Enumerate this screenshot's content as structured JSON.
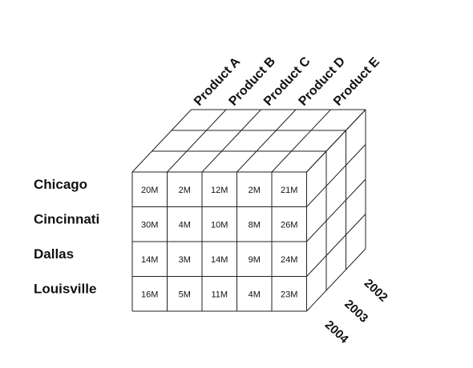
{
  "cities": [
    "Chicago",
    "Cincinnati",
    "Dallas",
    "Louisville"
  ],
  "products": [
    "Product A",
    "Product B",
    "Product C",
    "Product D",
    "Product E"
  ],
  "years": [
    "2004",
    "2003",
    "2002"
  ],
  "cells": [
    [
      "20M",
      "2M",
      "12M",
      "2M",
      "21M"
    ],
    [
      "30M",
      "4M",
      "10M",
      "8M",
      "26M"
    ],
    [
      "14M",
      "3M",
      "14M",
      "9M",
      "24M"
    ],
    [
      "16M",
      "5M",
      "11M",
      "4M",
      "23M"
    ]
  ],
  "colors": {
    "line": "#222222",
    "text": "#111111",
    "background": "#ffffff"
  }
}
